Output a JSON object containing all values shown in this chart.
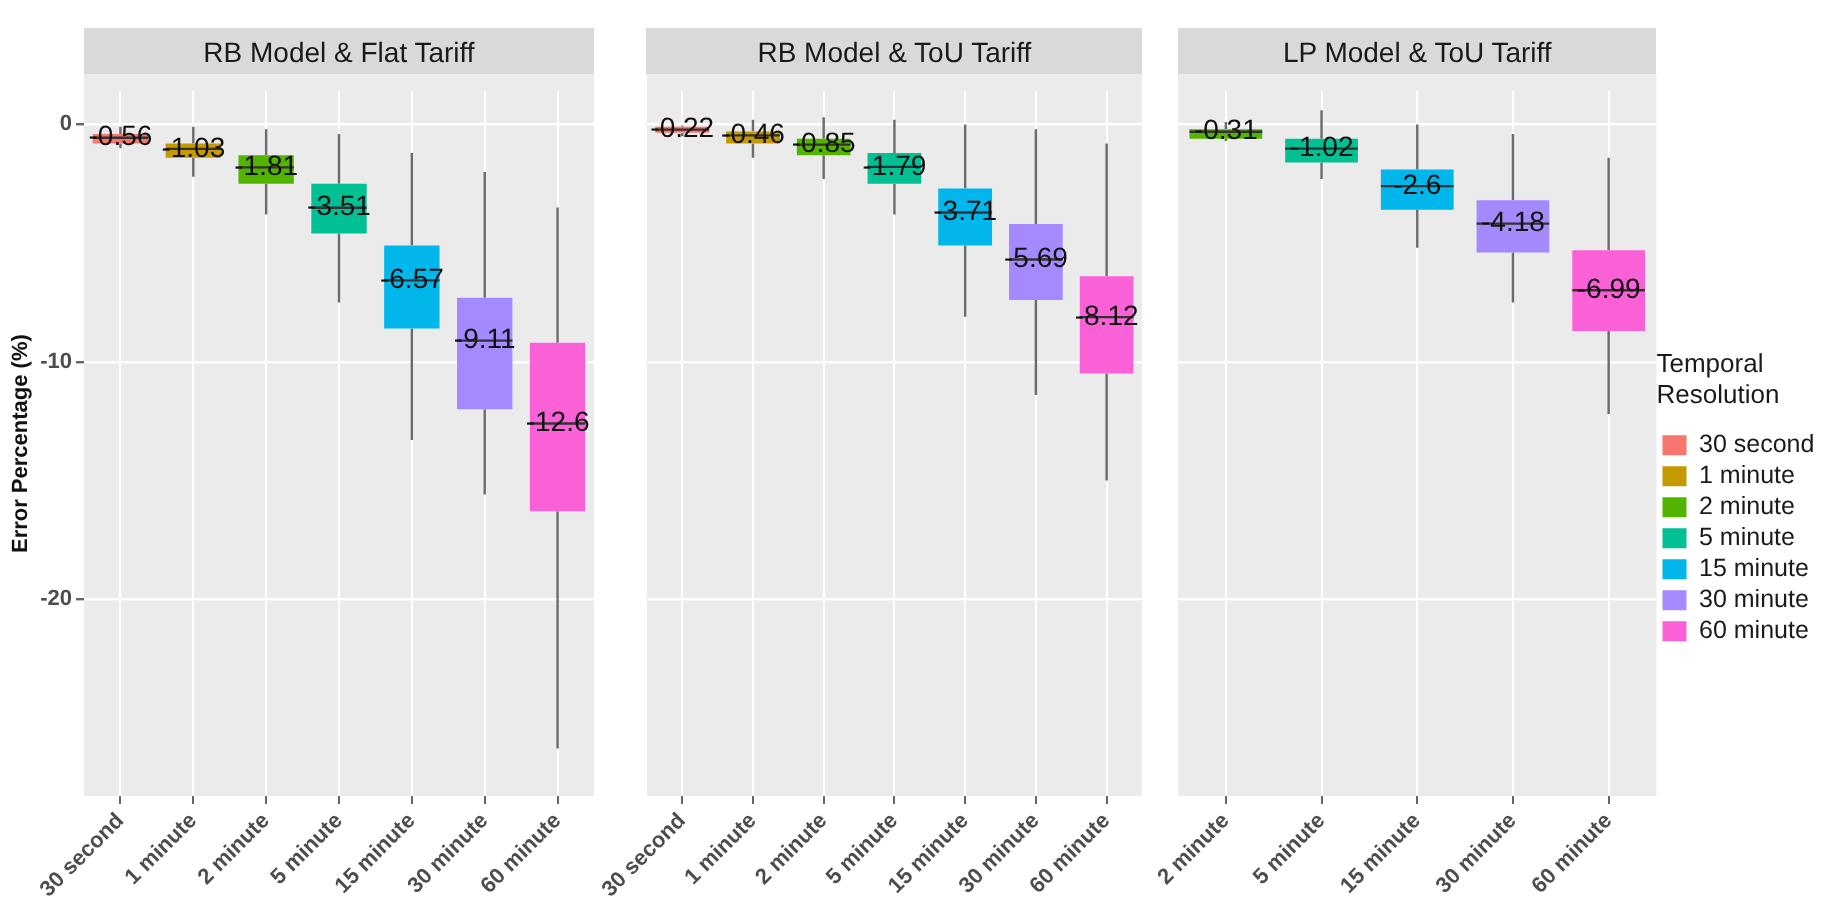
{
  "chart_data": [
    {
      "type": "box",
      "title": "RB Model & Flat Tariff",
      "ylabel": "Error Percentage (%)",
      "categories": [
        "30 second",
        "1 minute",
        "2 minute",
        "5 minute",
        "15 minute",
        "30 minute",
        "60 minute"
      ],
      "colors": [
        "#f8766d",
        "#c49a00",
        "#53b400",
        "#00c094",
        "#00b6eb",
        "#a58aff",
        "#fb61d7"
      ],
      "boxes": [
        {
          "low": -1.0,
          "q1": -0.8,
          "median": -0.56,
          "q3": -0.4,
          "high": -0.1
        },
        {
          "low": -2.2,
          "q1": -1.4,
          "median": -1.03,
          "q3": -0.8,
          "high": -0.1
        },
        {
          "low": -3.8,
          "q1": -2.5,
          "median": -1.81,
          "q3": -1.3,
          "high": -0.2
        },
        {
          "low": -7.5,
          "q1": -4.6,
          "median": -3.51,
          "q3": -2.5,
          "high": -0.4
        },
        {
          "low": -13.3,
          "q1": -8.6,
          "median": -6.57,
          "q3": -5.1,
          "high": -1.2
        },
        {
          "low": -15.6,
          "q1": -12.0,
          "median": -9.11,
          "q3": -7.3,
          "high": -2.0
        },
        {
          "low": -26.3,
          "q1": -16.3,
          "median": -12.6,
          "q3": -9.2,
          "high": -3.5
        }
      ],
      "annotations": [
        {
          "text": "-0.56",
          "x": "30 second",
          "y": -0.56
        },
        {
          "text": "-1.03",
          "x": "1 minute",
          "y": -1.03
        },
        {
          "text": "-1.81",
          "x": "2 minute",
          "y": -1.81
        },
        {
          "text": "-3.51",
          "x": "5 minute",
          "y": -3.51
        },
        {
          "text": "-6.57",
          "x": "15 minute",
          "y": -6.57
        },
        {
          "text": "-9.11",
          "x": "30 minute",
          "y": -9.11
        },
        {
          "text": "-12.6",
          "x": "60 minute",
          "y": -12.6
        }
      ],
      "ylim": [
        -28.3,
        1.4
      ],
      "yticks": [
        -20,
        -10,
        0
      ],
      "grid": true,
      "legend": false
    },
    {
      "type": "box",
      "title": "RB Model & ToU Tariff",
      "categories": [
        "30 second",
        "1 minute",
        "2 minute",
        "5 minute",
        "15 minute",
        "30 minute",
        "60 minute"
      ],
      "colors": [
        "#f8766d",
        "#c49a00",
        "#53b400",
        "#00c094",
        "#00b6eb",
        "#a58aff",
        "#fb61d7"
      ],
      "boxes": [
        {
          "low": -0.5,
          "q1": -0.35,
          "median": -0.22,
          "q3": -0.1,
          "high": -0.05
        },
        {
          "low": -1.4,
          "q1": -0.8,
          "median": -0.46,
          "q3": -0.3,
          "high": 0.2
        },
        {
          "low": -2.3,
          "q1": -1.3,
          "median": -0.85,
          "q3": -0.6,
          "high": 0.3
        },
        {
          "low": -3.8,
          "q1": -2.5,
          "median": -1.79,
          "q3": -1.2,
          "high": 0.2
        },
        {
          "low": -8.1,
          "q1": -5.1,
          "median": -3.71,
          "q3": -2.7,
          "high": 0.0
        },
        {
          "low": -11.4,
          "q1": -7.4,
          "median": -5.69,
          "q3": -4.2,
          "high": -0.2
        },
        {
          "low": -15.0,
          "q1": -10.5,
          "median": -8.12,
          "q3": -6.4,
          "high": -0.8
        }
      ],
      "annotations": [
        {
          "text": "-0.22",
          "x": "30 second",
          "y": -0.22
        },
        {
          "text": "-0.46",
          "x": "1 minute",
          "y": -0.46
        },
        {
          "text": "-0.85",
          "x": "2 minute",
          "y": -0.85
        },
        {
          "text": "-1.79",
          "x": "5 minute",
          "y": -1.79
        },
        {
          "text": "-3.71",
          "x": "15 minute",
          "y": -3.71
        },
        {
          "text": "-5.69",
          "x": "30 minute",
          "y": -5.69
        },
        {
          "text": "-8.12",
          "x": "60 minute",
          "y": -8.12
        }
      ],
      "ylim": [
        -28.3,
        1.4
      ],
      "yticks": [
        -20,
        -10,
        0
      ],
      "grid": true,
      "legend": false,
      "tick_labels": "x"
    },
    {
      "type": "box",
      "title": "LP Model & ToU Tariff",
      "legend_title": "Temporal Resolution",
      "categories": [
        "2 minute",
        "5 minute",
        "15 minute",
        "30 minute",
        "60 minute"
      ],
      "series": [
        {
          "name": "30 second",
          "color": "#f8766d",
          "boxes": [
            null,
            null,
            null,
            null,
            null
          ]
        },
        {
          "name": "1 minute",
          "color": "#c49a00",
          "boxes": [
            null,
            null,
            null,
            null,
            null
          ]
        },
        {
          "name": "2 minute",
          "color": "#53b400",
          "boxes": [
            {
              "low": -0.7,
              "q1": -0.6,
              "median": -0.31,
              "q3": -0.2,
              "high": 0.1
            },
            null,
            null,
            null,
            null
          ]
        },
        {
          "name": "5 minute",
          "color": "#00c094",
          "boxes": [
            null,
            {
              "low": -2.3,
              "q1": -1.6,
              "median": -1.02,
              "q3": -0.6,
              "high": 0.6
            },
            null,
            null,
            null
          ]
        },
        {
          "name": "15 minute",
          "color": "#00b6eb",
          "boxes": [
            null,
            null,
            {
              "low": -5.2,
              "q1": -3.6,
              "median": -2.6,
              "q3": -1.9,
              "high": 0.0
            },
            null,
            null
          ]
        },
        {
          "name": "30 minute",
          "color": "#a58aff",
          "boxes": [
            null,
            null,
            null,
            {
              "low": -7.5,
              "q1": -5.4,
              "median": -4.18,
              "q3": -3.2,
              "high": -0.4
            },
            null
          ]
        },
        {
          "name": "60 minute",
          "color": "#fb61d7",
          "boxes": [
            null,
            null,
            null,
            null,
            {
              "low": -12.2,
              "q1": -8.7,
              "median": -6.99,
              "q3": -5.3,
              "high": -1.4
            }
          ]
        }
      ],
      "annotations": [
        {
          "text": "-0.31",
          "x": "2 minute",
          "y": -0.31
        },
        {
          "text": "-1.02",
          "x": "5 minute",
          "y": -1.02
        },
        {
          "text": "-2.6",
          "x": "15 minute",
          "y": -2.6
        },
        {
          "text": "-4.18",
          "x": "30 minute",
          "y": -4.18
        },
        {
          "text": "-6.99",
          "x": "60 minute",
          "y": -6.99
        }
      ],
      "ylim": [
        -28.3,
        1.4
      ],
      "yticks": [
        -20,
        -10,
        0
      ],
      "grid": true,
      "legend": "right",
      "tick_labels": "x"
    }
  ]
}
